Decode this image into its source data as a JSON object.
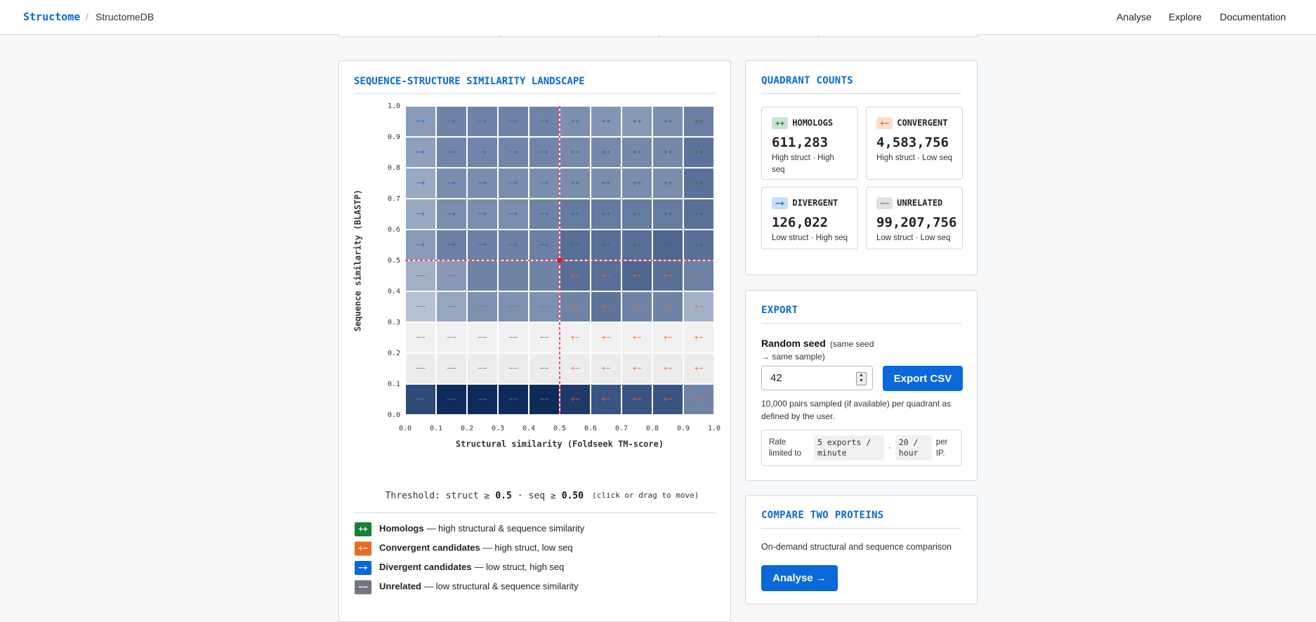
{
  "header": {
    "brand": "Structome",
    "separator": "/",
    "app": "StructomeDB",
    "nav": [
      "Analyse",
      "Explore",
      "Documentation"
    ]
  },
  "chart_data": {
    "type": "heatmap",
    "title": "SEQUENCE-STRUCTURE SIMILARITY LANDSCAPE",
    "xlabel": "Structural similarity (Foldseek TM-score)",
    "ylabel": "Sequence similarity (BLASTP)",
    "xlim": [
      0,
      1
    ],
    "ylim": [
      0,
      1
    ],
    "xticks": [
      {
        "value": 0,
        "label": "0.0"
      },
      {
        "value": 0.1,
        "label": "0.1"
      },
      {
        "value": 0.2,
        "label": "0.2"
      },
      {
        "value": 0.3,
        "label": "0.3"
      },
      {
        "value": 0.4,
        "label": "0.4"
      },
      {
        "value": 0.5,
        "label": "0.5"
      },
      {
        "value": 0.6,
        "label": "0.6"
      },
      {
        "value": 0.7,
        "label": "0.7"
      },
      {
        "value": 0.8,
        "label": "0.8"
      },
      {
        "value": 0.9,
        "label": "0.9"
      },
      {
        "value": 1,
        "label": "1.0"
      }
    ],
    "yticks": [
      {
        "value": 0,
        "label": "0.0"
      },
      {
        "value": 0.1,
        "label": "0.1"
      },
      {
        "value": 0.2,
        "label": "0.2"
      },
      {
        "value": 0.3,
        "label": "0.3"
      },
      {
        "value": 0.4,
        "label": "0.4"
      },
      {
        "value": 0.5,
        "label": "0.5"
      },
      {
        "value": 0.6,
        "label": "0.6"
      },
      {
        "value": 0.7,
        "label": "0.7"
      },
      {
        "value": 0.8,
        "label": "0.8"
      },
      {
        "value": 0.9,
        "label": "0.9"
      },
      {
        "value": 1,
        "label": "1.0"
      }
    ],
    "threshold": {
      "prefix": "Threshold: struct ≥",
      "struct": 0.5,
      "separator": "·",
      "seq_prefix": "seq ≥",
      "seq": {
        "value": 0.5,
        "label": "0.50"
      },
      "hint": "(click or drag to move)",
      "color": "#e0182d"
    },
    "quadrants": [
      {
        "symbol": "++",
        "name": "Homologs",
        "description": "— high structural & sequence similarity",
        "color": "#1a7f37"
      },
      {
        "symbol": "+−",
        "name": "Convergent candidates",
        "description": "— high struct, low seq",
        "color": "#ee6a1f"
      },
      {
        "symbol": "−+",
        "name": "Divergent candidates",
        "description": "— low struct, high seq",
        "color": "#0969da"
      },
      {
        "symbol": "−−",
        "name": "Unrelated",
        "description": "— low structural & sequence similarity",
        "color": "#6e7781"
      }
    ],
    "cell_colors": [
      [
        "#2e4a78",
        "#0f2b5c",
        "#0f2b5c",
        "#0f2b5c",
        "#0f2b5c",
        "#1f3a6a",
        "#3a5482",
        "#3a5482",
        "#3a5482",
        "#6f83a6"
      ],
      [
        "#ececec",
        "#ececec",
        "#ececec",
        "#ececec",
        "#ececec",
        "#ececec",
        "#ececec",
        "#ececec",
        "#ececec",
        "#ececec"
      ],
      [
        "#f0f0f0",
        "#f0f0f0",
        "#f0f0f0",
        "#f0f0f0",
        "#f0f0f0",
        "#f0f0f0",
        "#f0f0f0",
        "#f0f0f0",
        "#f0f0f0",
        "#f0f0f0"
      ],
      [
        "#b7c1d3",
        "#96a6bf",
        "#7e90af",
        "#7e90af",
        "#7e90af",
        "#6f83a6",
        "#5f7499",
        "#6f83a6",
        "#6f83a6",
        "#a3b1c8"
      ],
      [
        "#a2b0c7",
        "#8999b6",
        "#6f83a6",
        "#6f83a6",
        "#6f83a6",
        "#5a6f98",
        "#5a6f98",
        "#4f6690",
        "#5a6f98",
        "#6c81a4"
      ],
      [
        "#8a9bb8",
        "#6b80a4",
        "#6b80a4",
        "#6b80a4",
        "#6b80a4",
        "#5a6f98",
        "#5a6f98",
        "#5a6f98",
        "#4f6690",
        "#5a6f98"
      ],
      [
        "#99a9c2",
        "#7b8ead",
        "#7b8ead",
        "#7b8ead",
        "#6e82a5",
        "#667ba1",
        "#667ba1",
        "#667ba1",
        "#667ba1",
        "#5b7099"
      ],
      [
        "#9aa9c2",
        "#7a8dad",
        "#7a8dad",
        "#7a8dad",
        "#7a8dad",
        "#7a8dad",
        "#7a8dad",
        "#7a8dad",
        "#7a8dad",
        "#5a7099"
      ],
      [
        "#8fa0bc",
        "#7285a8",
        "#7285a8",
        "#7285a8",
        "#7285a8",
        "#7689ab",
        "#7689ab",
        "#7689ab",
        "#7689ab",
        "#5d739b"
      ],
      [
        "#8a9ab8",
        "#6f83a6",
        "#6f83a6",
        "#6f83a6",
        "#6f83a6",
        "#7c8fae",
        "#8496b3",
        "#8799b5",
        "#7d8fae",
        "#6a7ea3"
      ]
    ]
  },
  "counts": {
    "title": "QUADRANT COUNTS",
    "cards": [
      {
        "name": "HOMOLOGS",
        "count": "611,283",
        "description": "High struct · High seq"
      },
      {
        "name": "CONVERGENT",
        "count": "4,583,756",
        "description": "High struct · Low seq"
      },
      {
        "name": "DIVERGENT",
        "count": "126,022",
        "description": "Low struct · High seq"
      },
      {
        "name": "UNRELATED",
        "count": "99,207,756",
        "description": "Low struct · Low seq"
      }
    ]
  },
  "export": {
    "title": "EXPORT",
    "seed_label": "Random seed",
    "seed_hint": "(same seed → same sample)",
    "seed_value": 42,
    "button": "Export CSV",
    "note": "10,000 pairs sampled (if available) per quadrant as defined by the user.",
    "rate": {
      "prefix": "Rate limited to",
      "limit1": "5 exports / minute",
      "separator": "·",
      "limit2": "20 / hour",
      "suffix": "per IP."
    }
  },
  "compare": {
    "title": "COMPARE TWO PROTEINS",
    "text": "On-demand structural and sequence comparison",
    "button": "Analyse →"
  }
}
